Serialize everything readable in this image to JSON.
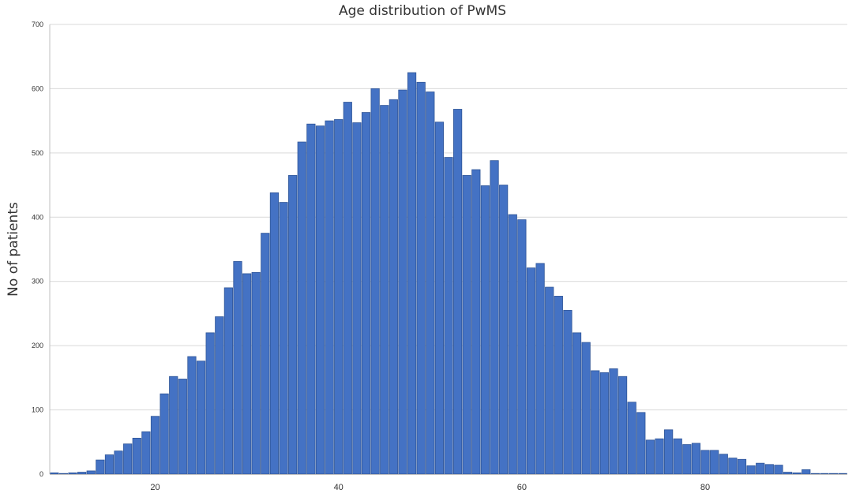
{
  "chart_data": {
    "type": "bar",
    "title": "Age distribution of PwMS",
    "xlabel": "",
    "ylabel": "No of patients",
    "x": [
      9,
      10,
      11,
      12,
      13,
      14,
      15,
      16,
      17,
      18,
      19,
      20,
      21,
      22,
      23,
      24,
      25,
      26,
      27,
      28,
      29,
      30,
      31,
      32,
      33,
      34,
      35,
      36,
      37,
      38,
      39,
      40,
      41,
      42,
      43,
      44,
      45,
      46,
      47,
      48,
      49,
      50,
      51,
      52,
      53,
      54,
      55,
      56,
      57,
      58,
      59,
      60,
      61,
      62,
      63,
      64,
      65,
      66,
      67,
      68,
      69,
      70,
      71,
      72,
      73,
      74,
      75,
      76,
      77,
      78,
      79,
      80,
      81,
      82,
      83,
      84,
      85,
      86,
      87,
      88,
      89,
      90,
      91,
      92,
      93,
      94,
      95
    ],
    "values": [
      2,
      1,
      2,
      3,
      5,
      22,
      30,
      36,
      47,
      56,
      66,
      90,
      125,
      152,
      148,
      183,
      176,
      220,
      245,
      290,
      331,
      312,
      314,
      375,
      438,
      423,
      465,
      517,
      545,
      542,
      550,
      552,
      579,
      547,
      563,
      600,
      574,
      583,
      598,
      625,
      610,
      595,
      548,
      493,
      568,
      465,
      474,
      449,
      488,
      450,
      404,
      396,
      321,
      328,
      291,
      277,
      255,
      220,
      205,
      161,
      158,
      164,
      152,
      112,
      96,
      53,
      55,
      69,
      55,
      46,
      48,
      37,
      37,
      31,
      25,
      23,
      13,
      17,
      15,
      14,
      3,
      2,
      7,
      1,
      1,
      1,
      1
    ],
    "xticks": [
      20,
      40,
      60,
      80
    ],
    "yticks": [
      0,
      100,
      200,
      300,
      400,
      500,
      600,
      700
    ],
    "xlim": [
      8.5,
      95.5
    ],
    "ylim": [
      0,
      700
    ],
    "grid": true,
    "bar_color": "#4472c4",
    "bar_edge_color": "#2f5597"
  }
}
